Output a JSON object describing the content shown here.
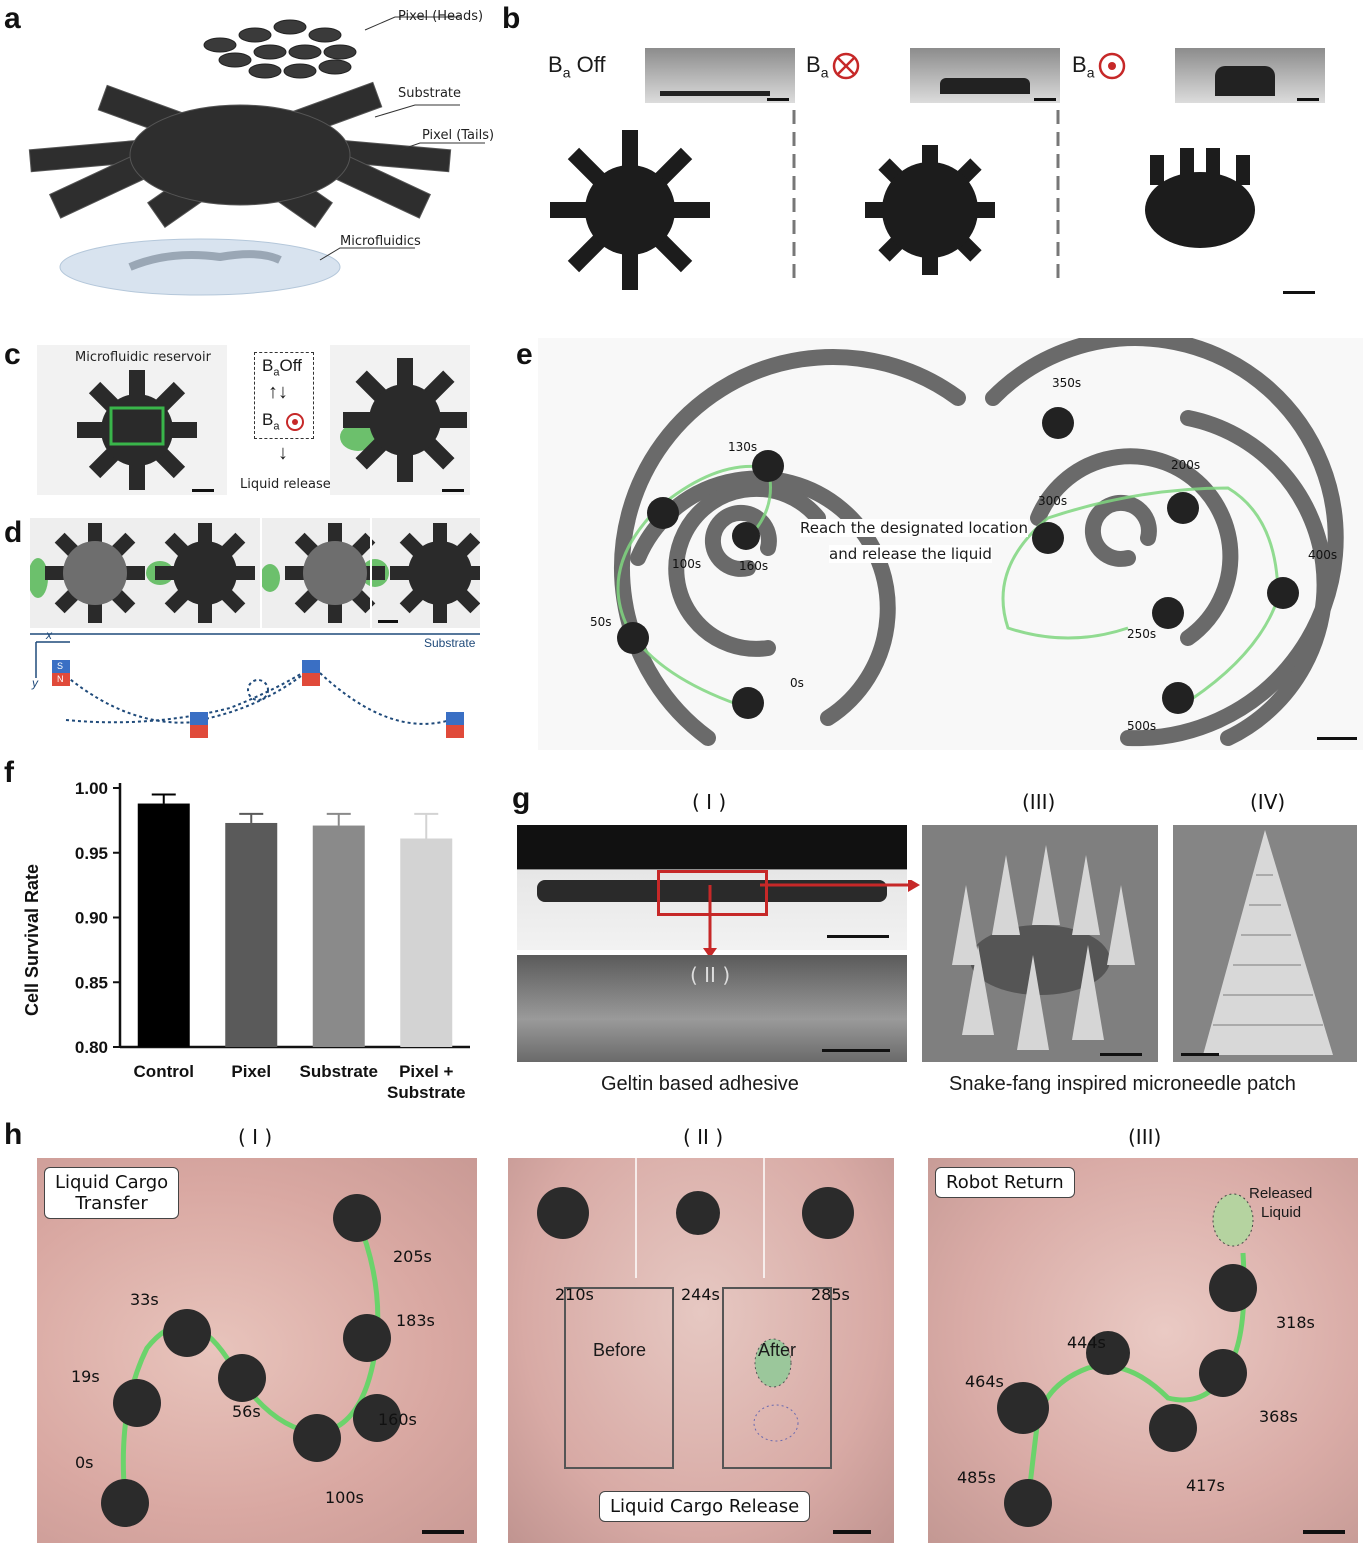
{
  "panels": {
    "a": {
      "letter": "a",
      "labels": [
        "Pixel (Heads)",
        "Substrate",
        "Pixel (Tails)",
        "Microfluidics"
      ]
    },
    "b": {
      "letter": "b",
      "conditions": [
        "Off",
        "",
        ""
      ],
      "field_symbol": "B",
      "field_sub": "a"
    },
    "c": {
      "letter": "c",
      "title": "Microfluidic reservoir",
      "seq_top": "Off",
      "result": "Liquid release"
    },
    "d": {
      "letter": "d",
      "axis_x": "x",
      "axis_y": "y",
      "substrate": "Substrate",
      "magnet_s": "S",
      "magnet_n": "N"
    },
    "e": {
      "letter": "e",
      "message_line1": "Reach the designated location",
      "message_line2": "and release the liquid",
      "times_left": [
        "0s",
        "50s",
        "100s",
        "130s",
        "160s"
      ],
      "times_right": [
        "200s",
        "250s",
        "300s",
        "350s",
        "400s",
        "500s"
      ]
    },
    "f": {
      "letter": "f",
      "ylabel": "Cell Survival Rate"
    },
    "g": {
      "letter": "g",
      "romans": [
        "( I )",
        "( II )",
        "(III)",
        "(IV)"
      ],
      "caption_left": "Geltin based adhesive",
      "caption_right": "Snake-fang inspired microneedle patch"
    },
    "h": {
      "letter": "h",
      "romans": [
        "( I )",
        "( II )",
        "(III)"
      ],
      "box1_line1": "Liquid Cargo",
      "box1_line2": "Transfer",
      "times1": [
        "0s",
        "19s",
        "33s",
        "56s",
        "100s",
        "160s",
        "183s",
        "205s"
      ],
      "times2": [
        "210s",
        "244s",
        "285s"
      ],
      "before": "Before",
      "after": "After",
      "box2": "Liquid Cargo Release",
      "box3": "Robot Return",
      "released_line1": "Released",
      "released_line2": "Liquid",
      "times3": [
        "318s",
        "368s",
        "417s",
        "444s",
        "464s",
        "485s"
      ]
    }
  },
  "chart_data": {
    "type": "bar",
    "categories": [
      "Control",
      "Pixel",
      "Substrate",
      "Pixel + Substrate"
    ],
    "values": [
      0.988,
      0.973,
      0.971,
      0.961
    ],
    "errors": [
      0.007,
      0.007,
      0.009,
      0.019
    ],
    "colors": [
      "#000000",
      "#5a5a5a",
      "#8a8a8a",
      "#d3d3d3"
    ],
    "ylabel": "Cell Survival Rate",
    "ylim": [
      0.8,
      1.0
    ],
    "yticks": [
      "0.80",
      "0.85",
      "0.90",
      "0.95",
      "1.00"
    ]
  }
}
